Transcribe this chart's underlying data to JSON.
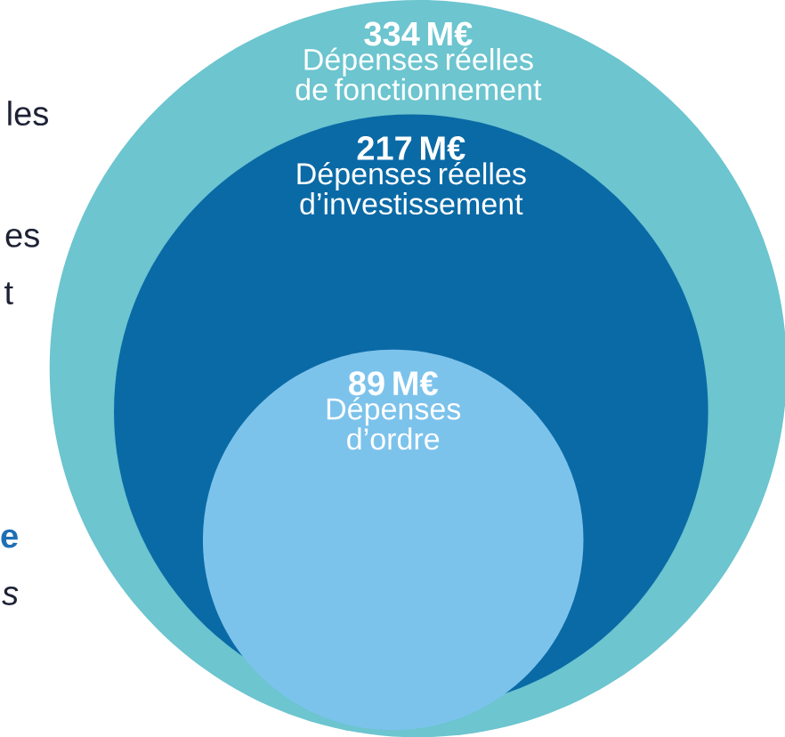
{
  "chart_data": {
    "type": "other",
    "categories": [
      "Dépenses réelles de fonctionnement",
      "Dépenses réelles d’investissement",
      "Dépenses d’ordre"
    ],
    "values": [
      334,
      217,
      89
    ],
    "value_labels": [
      "334 M€",
      "217 M€",
      "89 M€"
    ],
    "colors": [
      "#6cc5cf",
      "#0a6aa6",
      "#7cc3ec"
    ],
    "annotations": [
      "les",
      "es",
      "t",
      "e",
      "s"
    ]
  }
}
